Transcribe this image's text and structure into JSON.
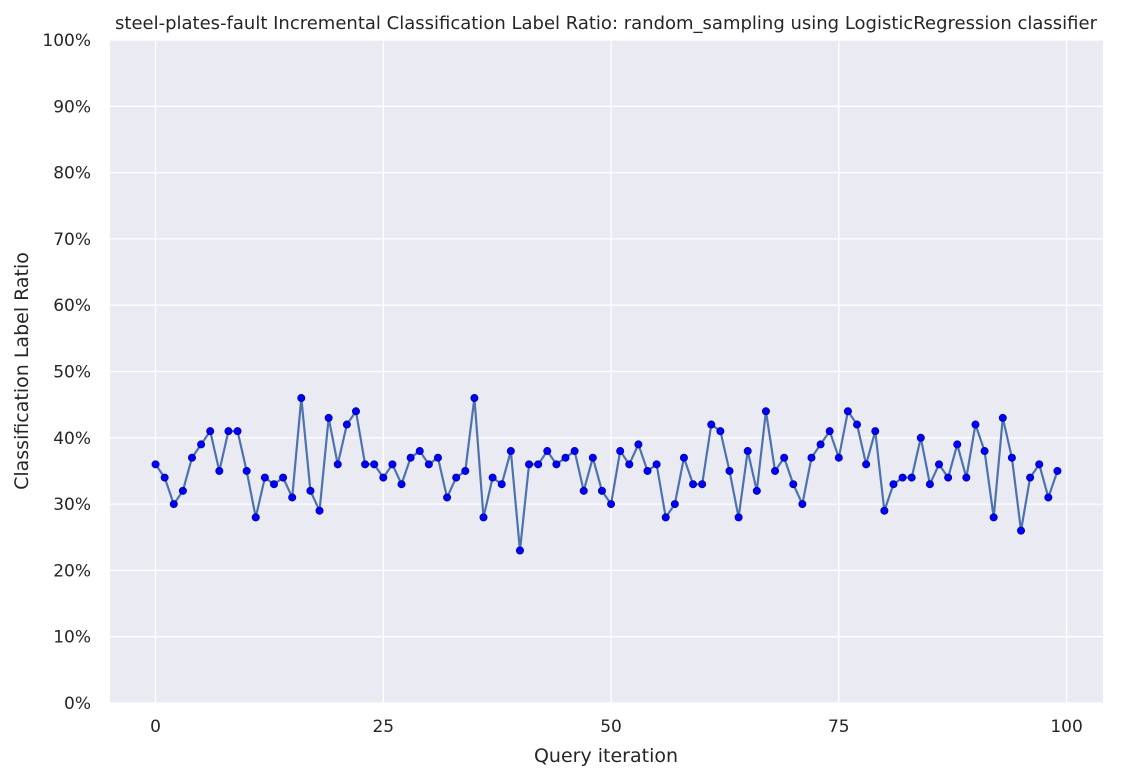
{
  "chart_data": {
    "type": "line",
    "title": "steel-plates-fault Incremental Classification Label Ratio: random_sampling using LogisticRegression classifier",
    "xlabel": "Query iteration",
    "ylabel": "Classification Label Ratio",
    "xlim": [
      -5,
      104
    ],
    "ylim": [
      0,
      1
    ],
    "x_ticks": [
      0,
      25,
      50,
      75,
      100
    ],
    "x_tick_labels": [
      "0",
      "25",
      "50",
      "75",
      "100"
    ],
    "y_ticks": [
      0,
      0.1,
      0.2,
      0.3,
      0.4,
      0.5,
      0.6,
      0.7,
      0.8,
      0.9,
      1.0
    ],
    "y_tick_labels": [
      "0%",
      "10%",
      "20%",
      "30%",
      "40%",
      "50%",
      "60%",
      "70%",
      "80%",
      "90%",
      "100%"
    ],
    "grid": true,
    "colors": {
      "line": "#4c72b0",
      "marker": "#0000ff",
      "background": "#eaeaf2",
      "grid": "#ffffff"
    },
    "series": [
      {
        "x": [
          0,
          1,
          2,
          3,
          4,
          5,
          6,
          7,
          8,
          9,
          10,
          11,
          12,
          13,
          14,
          15,
          16,
          17,
          18,
          19,
          20,
          21,
          22,
          23,
          24,
          25,
          26,
          27,
          28,
          29,
          30,
          31,
          32,
          33,
          34,
          35,
          36,
          37,
          38,
          39,
          40,
          41,
          42,
          43,
          44,
          45,
          46,
          47,
          48,
          49,
          50,
          51,
          52,
          53,
          54,
          55,
          56,
          57,
          58,
          59,
          60,
          61,
          62,
          63,
          64,
          65,
          66,
          67,
          68,
          69,
          70,
          71,
          72,
          73,
          74,
          75,
          76,
          77,
          78,
          79,
          80,
          81,
          82,
          83,
          84,
          85,
          86,
          87,
          88,
          89,
          90,
          91,
          92,
          93,
          94,
          95,
          96,
          97,
          98,
          99
        ],
        "values": [
          0.36,
          0.34,
          0.3,
          0.32,
          0.37,
          0.39,
          0.41,
          0.35,
          0.41,
          0.41,
          0.35,
          0.28,
          0.34,
          0.33,
          0.34,
          0.31,
          0.46,
          0.32,
          0.29,
          0.43,
          0.36,
          0.42,
          0.44,
          0.36,
          0.36,
          0.34,
          0.36,
          0.33,
          0.37,
          0.38,
          0.36,
          0.37,
          0.31,
          0.34,
          0.35,
          0.46,
          0.28,
          0.34,
          0.33,
          0.38,
          0.23,
          0.36,
          0.36,
          0.38,
          0.36,
          0.37,
          0.38,
          0.32,
          0.37,
          0.32,
          0.3,
          0.38,
          0.36,
          0.39,
          0.35,
          0.36,
          0.28,
          0.3,
          0.37,
          0.33,
          0.33,
          0.42,
          0.41,
          0.35,
          0.28,
          0.38,
          0.32,
          0.44,
          0.35,
          0.37,
          0.33,
          0.3,
          0.37,
          0.39,
          0.41,
          0.37,
          0.44,
          0.42,
          0.36,
          0.41,
          0.29,
          0.33,
          0.34,
          0.34,
          0.4,
          0.33,
          0.36,
          0.34,
          0.39,
          0.34,
          0.42,
          0.38,
          0.28,
          0.43,
          0.37,
          0.26,
          0.34,
          0.36,
          0.31,
          0.35
        ]
      }
    ]
  }
}
